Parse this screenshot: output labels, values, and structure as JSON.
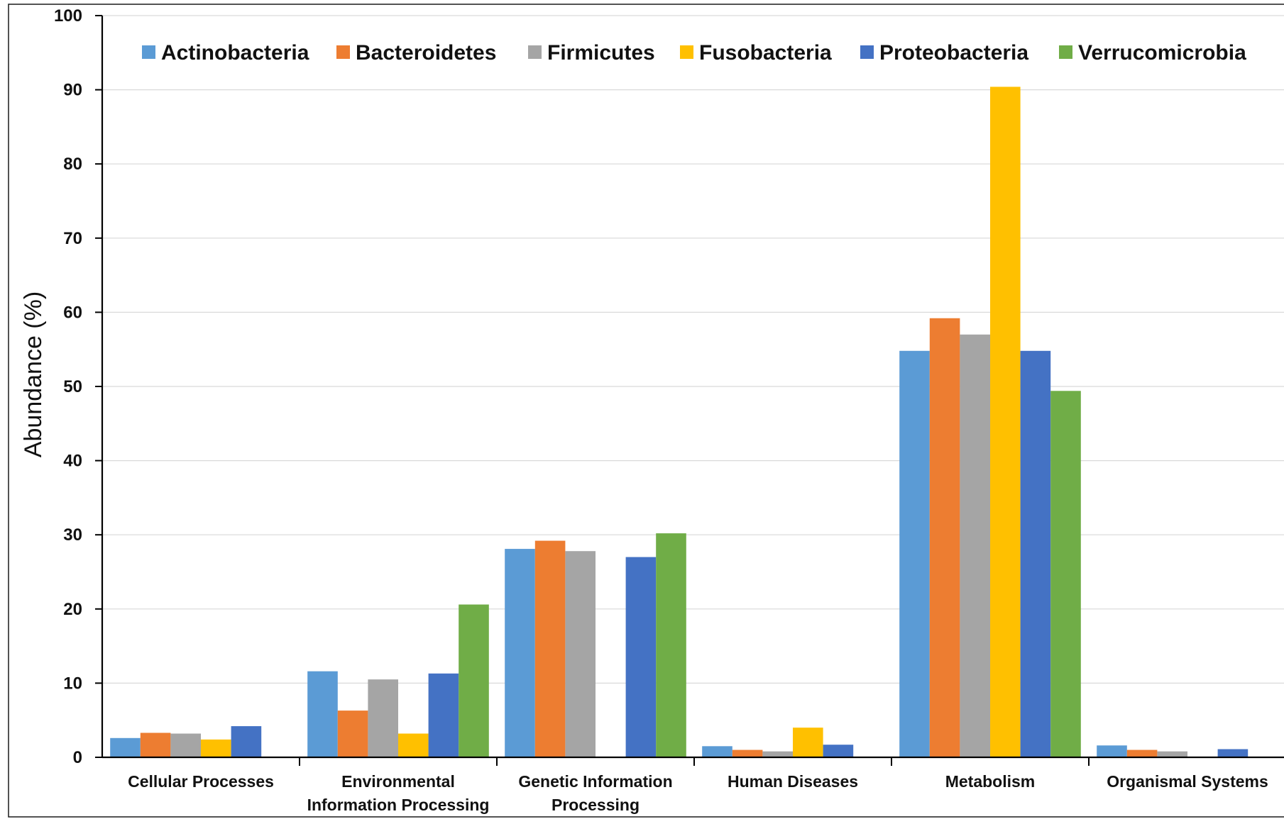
{
  "chart_data": {
    "type": "bar",
    "title": "",
    "xlabel": "",
    "ylabel": "Abundance (%)",
    "ylim": [
      0,
      100
    ],
    "yticks": [
      0,
      10,
      20,
      30,
      40,
      50,
      60,
      70,
      80,
      90,
      100
    ],
    "grid": true,
    "legend_position": "top",
    "categories": [
      [
        "Cellular Processes"
      ],
      [
        "Environmental",
        "Information Processing"
      ],
      [
        "Genetic Information",
        "Processing"
      ],
      [
        "Human Diseases"
      ],
      [
        "Metabolism"
      ],
      [
        "Organismal Systems"
      ]
    ],
    "series": [
      {
        "name": "Actinobacteria",
        "color": "#5B9BD5",
        "values": [
          2.6,
          11.6,
          28.1,
          1.5,
          54.8,
          1.6
        ]
      },
      {
        "name": "Bacteroidetes",
        "color": "#ED7D31",
        "values": [
          3.3,
          6.3,
          29.2,
          1.0,
          59.2,
          1.0
        ]
      },
      {
        "name": "Firmicutes",
        "color": "#A5A5A5",
        "values": [
          3.2,
          10.5,
          27.8,
          0.8,
          57.0,
          0.8
        ]
      },
      {
        "name": "Fusobacteria",
        "color": "#FFC000",
        "values": [
          2.4,
          3.2,
          0.0,
          4.0,
          90.4,
          0.0
        ]
      },
      {
        "name": "Proteobacteria",
        "color": "#4472C4",
        "values": [
          4.2,
          11.3,
          27.0,
          1.7,
          54.8,
          1.1
        ]
      },
      {
        "name": "Verrucomicrobia",
        "color": "#70AD47",
        "values": [
          0.0,
          20.6,
          30.2,
          0.0,
          49.4,
          0.0
        ]
      }
    ]
  }
}
